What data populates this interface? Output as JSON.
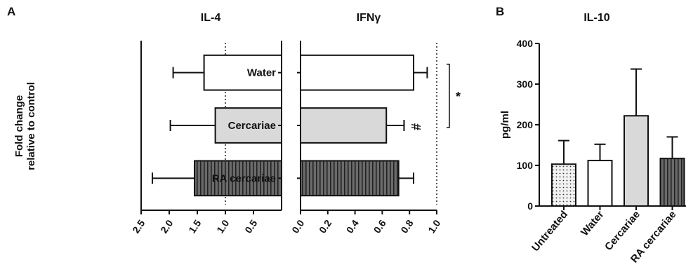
{
  "figure": {
    "panel_a_letter": "A",
    "panel_b_letter": "B",
    "panel_a_ylabel_line1": "Fold change",
    "panel_a_ylabel_line2": "relative to control"
  },
  "colors": {
    "axis": "#111111",
    "white_bar": "#ffffff",
    "light_gray_bar": "#d9d9d9",
    "dark_gray_bar": "#6b6b6b",
    "stripe": "#222222"
  },
  "chart_data": [
    {
      "type": "bar",
      "orientation": "horizontal",
      "title": "IL-4",
      "categories": [
        "Water",
        "Cercariae",
        "RA cercariae"
      ],
      "values": [
        1.38,
        1.18,
        1.55
      ],
      "errors": [
        0.55,
        0.8,
        0.75
      ],
      "fills": [
        "white",
        "light-gray",
        "striped-dark-gray"
      ],
      "xlim": [
        2.5,
        0.0
      ],
      "reversed_axis": true,
      "ticks": [
        "2.5",
        "2.0",
        "1.5",
        "1.0",
        "0.5"
      ],
      "tick_values": [
        2.5,
        2.0,
        1.5,
        1.0,
        0.5
      ],
      "reference_line": 1.0,
      "grid": false
    },
    {
      "type": "bar",
      "orientation": "horizontal",
      "title": "IFNγ",
      "categories": [
        "Water",
        "Cercariae",
        "RA cercariae"
      ],
      "values": [
        0.83,
        0.63,
        0.72
      ],
      "errors": [
        0.1,
        0.13,
        0.11
      ],
      "fills": [
        "white",
        "light-gray",
        "striped-dark-gray"
      ],
      "xlim": [
        0.0,
        1.0
      ],
      "ticks": [
        "0.0",
        "0.2",
        "0.4",
        "0.6",
        "0.8",
        "1.0"
      ],
      "tick_values": [
        0.0,
        0.2,
        0.4,
        0.6,
        0.8,
        1.0
      ],
      "reference_line": 1.0,
      "annotations": [
        {
          "text": "#",
          "category": "Cercariae"
        },
        {
          "text": "*",
          "bracket": [
            "Water",
            "Cercariae"
          ]
        }
      ],
      "grid": false
    },
    {
      "type": "bar",
      "orientation": "vertical",
      "title": "IL-10",
      "categories": [
        "Untreated",
        "Water",
        "Cercariae",
        "RA cercariae"
      ],
      "values": [
        103,
        112,
        222,
        117
      ],
      "errors": [
        58,
        40,
        115,
        53
      ],
      "fills": [
        "dotted",
        "white",
        "light-gray",
        "striped-dark-gray"
      ],
      "ylabel": "pg/ml",
      "ylim": [
        0,
        400
      ],
      "ticks": [
        "0",
        "100",
        "200",
        "300",
        "400"
      ],
      "tick_values": [
        0,
        100,
        200,
        300,
        400
      ],
      "grid": false
    }
  ]
}
